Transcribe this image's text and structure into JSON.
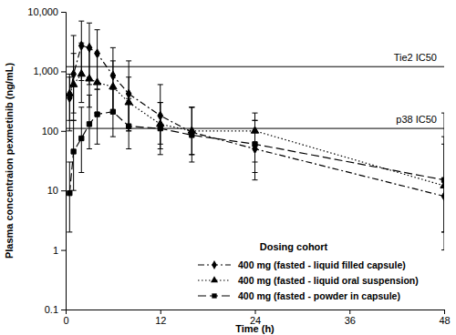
{
  "chart_data": {
    "type": "line",
    "x_label": "Time (h)",
    "y_label": "Plasma concentraion pexmetinib (ng/mL)",
    "log": "y",
    "grid": false,
    "legend": "lower right",
    "legend_title": "Dosing cohort",
    "xlim": [
      0,
      48
    ],
    "xticks": [
      0,
      12,
      24,
      36,
      48
    ],
    "ylim": [
      0.1,
      10000
    ],
    "yticks": [
      0.1,
      1,
      10,
      100,
      {
        "value": 1000,
        "label": "1,000"
      },
      {
        "value": 10000,
        "label": "10,000"
      }
    ],
    "x": [
      0.5,
      1,
      2,
      3,
      4,
      6,
      8,
      12,
      16,
      24,
      48
    ],
    "reference_lines": [
      {
        "value": 1200,
        "label": "Tie2 IC50"
      },
      {
        "value": 110,
        "label": "p38 IC50"
      }
    ],
    "series": [
      {
        "name": "400 mg (fasted - liquid filled capsule)",
        "color": "#000000",
        "marker": "diamond",
        "line_style": "dashed",
        "values": [
          360,
          900,
          2700,
          2500,
          2000,
          850,
          420,
          180,
          95,
          50,
          8
        ],
        "lower": [
          150,
          200,
          700,
          600,
          500,
          200,
          100,
          50,
          40,
          15,
          1
        ],
        "upper": [
          800,
          4000,
          7000,
          6500,
          5000,
          2500,
          1500,
          600,
          250,
          150,
          60
        ]
      },
      {
        "name": "400 mg (fasted - liquid oral suspension)",
        "color": "#000000",
        "marker": "triangle",
        "line_style": "dotted",
        "values": [
          420,
          600,
          900,
          750,
          650,
          550,
          300,
          130,
          100,
          100,
          12
        ],
        "lower": [
          100,
          150,
          300,
          250,
          200,
          200,
          100,
          60,
          40,
          30,
          2
        ],
        "upper": [
          900,
          2000,
          3000,
          2500,
          2000,
          1500,
          800,
          300,
          250,
          200,
          80
        ]
      },
      {
        "name": "400 mg (fasted - powder in capsule)",
        "color": "#000000",
        "marker": "square",
        "line_style": "longdash",
        "values": [
          9,
          45,
          75,
          130,
          190,
          210,
          120,
          110,
          85,
          60,
          15
        ],
        "lower": [
          2,
          10,
          20,
          50,
          60,
          80,
          50,
          40,
          30,
          20,
          2
        ],
        "upper": [
          30,
          150,
          250,
          400,
          500,
          500,
          350,
          300,
          250,
          150,
          200
        ]
      }
    ]
  }
}
